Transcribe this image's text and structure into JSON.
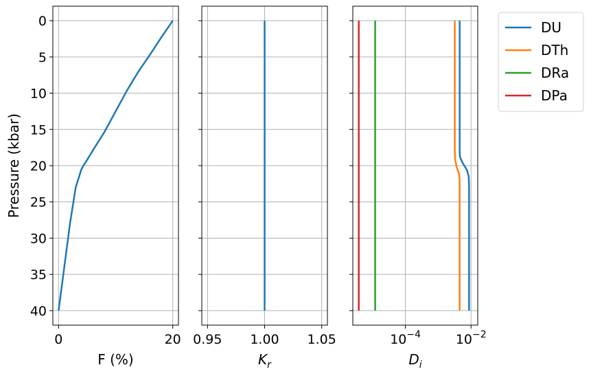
{
  "chart_data": [
    {
      "type": "line",
      "xlabel": "F (%)",
      "ylabel": "Pressure (kbar)",
      "xlim": [
        -1,
        21
      ],
      "ylim": [
        42,
        -2
      ],
      "x_ticks": [
        0,
        20
      ],
      "x_tick_labels": [
        "0",
        "20"
      ],
      "y_ticks": [
        0,
        5,
        10,
        15,
        20,
        25,
        30,
        35,
        40
      ],
      "y_tick_labels": [
        "0",
        "5",
        "10",
        "15",
        "20",
        "25",
        "30",
        "35",
        "40"
      ],
      "grid": true,
      "series": [
        {
          "name": "",
          "color": "#1f77b4",
          "x": [
            0,
            1,
            2,
            3,
            4,
            4.5,
            5,
            6,
            8,
            10,
            12,
            14,
            16,
            18,
            20
          ],
          "y": [
            40,
            34,
            28,
            23,
            20.5,
            19.8,
            19.2,
            17.9,
            15.4,
            12.5,
            9.6,
            7.0,
            4.7,
            2.3,
            0
          ]
        }
      ]
    },
    {
      "type": "line",
      "xlabel": "K_r",
      "xlim": [
        0.945,
        1.055
      ],
      "ylim": [
        42,
        -2
      ],
      "x_ticks": [
        0.95,
        1.0,
        1.05
      ],
      "x_tick_labels": [
        "0.95",
        "1.00",
        "1.05"
      ],
      "y_ticks": [
        0,
        5,
        10,
        15,
        20,
        25,
        30,
        35,
        40
      ],
      "grid": true,
      "series": [
        {
          "name": "",
          "color": "#1f77b4",
          "x": [
            1.0,
            1.0
          ],
          "y": [
            0,
            40
          ]
        }
      ]
    },
    {
      "type": "line",
      "xlabel": "D_i",
      "xscale": "log",
      "xlim": [
        2.5e-06,
        0.016
      ],
      "ylim": [
        42,
        -2
      ],
      "x_ticks": [
        0.0001,
        0.01
      ],
      "x_tick_labels": [
        "10^-4",
        "10^-2"
      ],
      "y_ticks": [
        0,
        5,
        10,
        15,
        20,
        25,
        30,
        35,
        40
      ],
      "grid": true,
      "legend": "outside-right-top",
      "series": [
        {
          "name": "DU",
          "color": "#1f77b4",
          "x": [
            0.0045,
            0.0045,
            0.0046,
            0.0055,
            0.0075,
            0.0085,
            0.0087,
            0.0087
          ],
          "y": [
            0,
            18,
            18.8,
            19.6,
            20.6,
            21.5,
            23,
            40
          ]
        },
        {
          "name": "DTh",
          "color": "#ff7f0e",
          "x": [
            0.0032,
            0.0032,
            0.0033,
            0.0037,
            0.0043,
            0.0045,
            0.0045
          ],
          "y": [
            0,
            18.2,
            19.2,
            20.3,
            21.1,
            22,
            40
          ]
        },
        {
          "name": "DRa",
          "color": "#2ca02c",
          "x": [
            1.2e-05,
            1.2e-05
          ],
          "y": [
            0,
            40
          ]
        },
        {
          "name": "DPa",
          "color": "#d62728",
          "x": [
            3.8e-06,
            3.8e-06
          ],
          "y": [
            0,
            40
          ]
        }
      ]
    }
  ]
}
